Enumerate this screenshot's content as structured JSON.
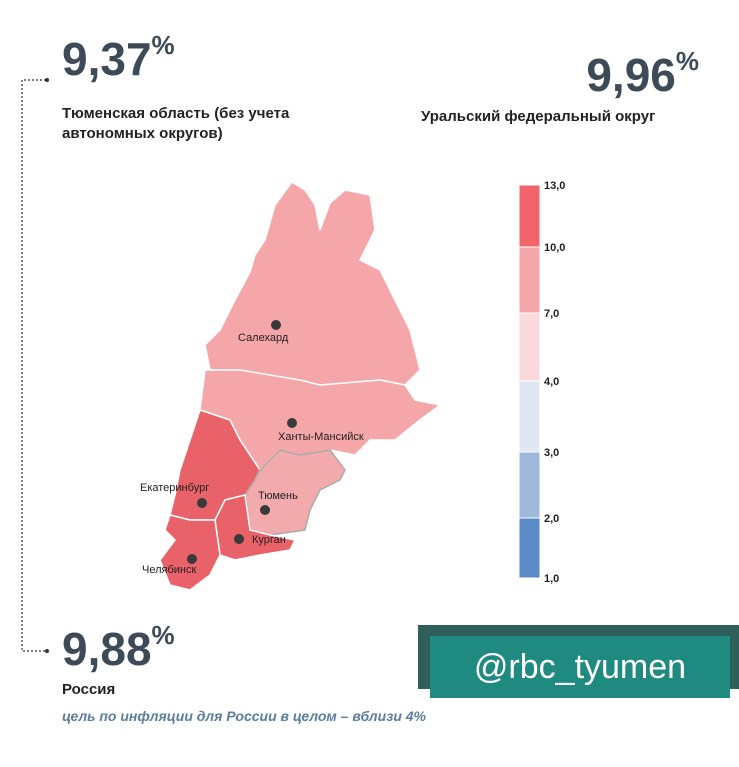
{
  "tyumen": {
    "value": "9,37",
    "unit": "%",
    "label_lines": [
      "Тюменская область (без учета",
      "автономных округов)"
    ]
  },
  "urfo": {
    "value": "9,96",
    "unit": "%",
    "label": "Уральский федеральный округ"
  },
  "russia": {
    "value": "9,88",
    "unit": "%",
    "label": "Россия",
    "note": "цель по инфляции для России в целом – вблизи 4%"
  },
  "cities": [
    "Салехард",
    "Ханты-Мансийск",
    "Екатеринбург",
    "Тюмень",
    "Курган",
    "Челябинск"
  ],
  "legend": {
    "ticks": [
      "13,0",
      "10,0",
      "7,0",
      "4,0",
      "3,0",
      "2,0",
      "1,0"
    ],
    "colors": [
      "#f0646a",
      "#f5a6a9",
      "#fadadd",
      "#dfe7f3",
      "#9fb9dd",
      "#5b8ac8"
    ]
  },
  "watermark": "@rbc_tyumen"
}
